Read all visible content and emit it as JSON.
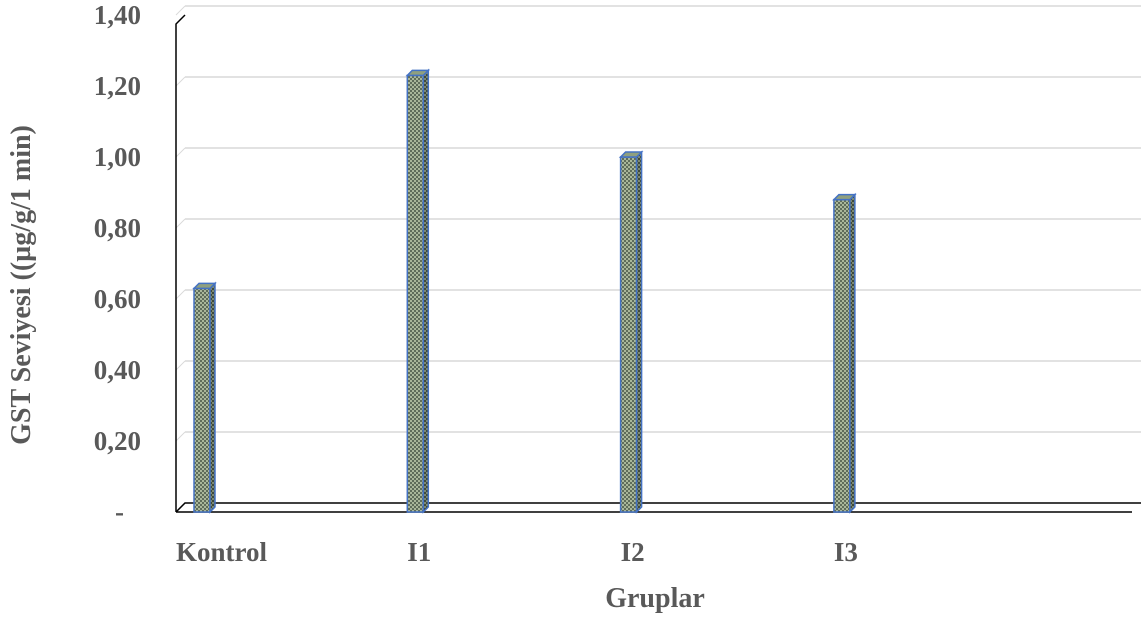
{
  "chart_data": {
    "type": "bar",
    "categories": [
      "Kontrol",
      "I1",
      "I2",
      "I3"
    ],
    "values": [
      0.63,
      1.23,
      1.0,
      0.88
    ],
    "xlabel": "Gruplar",
    "ylabel": "GST Seviyesi ((µg/g/1 min)",
    "ylim": [
      0,
      1.4
    ],
    "yticks": [
      {
        "value": 0,
        "label": "-"
      },
      {
        "value": 0.2,
        "label": "0,20"
      },
      {
        "value": 0.4,
        "label": "0,40"
      },
      {
        "value": 0.6,
        "label": "0,60"
      },
      {
        "value": 0.8,
        "label": "0,80"
      },
      {
        "value": 1.0,
        "label": "1,00"
      },
      {
        "value": 1.2,
        "label": "1,20"
      },
      {
        "value": 1.4,
        "label": "1,40"
      }
    ],
    "grid": true,
    "legend": "none",
    "style": "3d-column",
    "colors": {
      "bar_fill": "#a9b79a",
      "bar_pattern": "#5f6d5a",
      "bar_edge": "#4472c4",
      "grid": "#d9d9d9",
      "axis": "#000000",
      "text": "#595959"
    }
  }
}
